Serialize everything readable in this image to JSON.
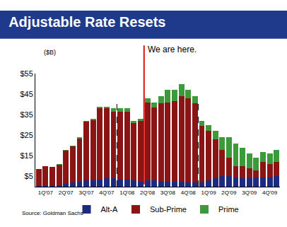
{
  "chart_data": {
    "type": "bar",
    "title": "Adjustable Rate Resets",
    "y_label": "($B)",
    "annotations": [
      "We are here."
    ],
    "source": "Source: Goldman Sachs",
    "stacked": true,
    "grid": false,
    "legend": "bottom",
    "categories": [
      null,
      "1Q'07",
      null,
      null,
      "2Q'07",
      null,
      null,
      "3Q'07",
      null,
      null,
      "4Q'07",
      null,
      null,
      "1Q'08",
      null,
      null,
      "2Q'08",
      null,
      null,
      "3Q'08",
      null,
      null,
      "4Q'08",
      null,
      null,
      "1Q'09",
      null,
      null,
      "2Q'09",
      null,
      null,
      "3Q'09",
      null,
      null,
      "4Q'09",
      null
    ],
    "series": [
      {
        "name": "Alt-A",
        "color": "#1c2a80",
        "values": [
          0.5,
          0.5,
          0.6,
          0.8,
          1.5,
          2,
          2.5,
          3,
          3,
          3.5,
          4,
          4,
          3.5,
          3.5,
          3,
          2.5,
          3,
          3,
          2.5,
          2.5,
          2.5,
          2.5,
          2,
          2,
          2,
          3,
          4,
          5,
          5,
          4.5,
          4,
          4,
          4.5,
          4.5,
          4.5,
          5
        ]
      },
      {
        "name": "Sub-Prime",
        "color": "#8b1414",
        "values": [
          8,
          9.5,
          8.9,
          10,
          16.2,
          17.7,
          21,
          28.5,
          29.2,
          34.5,
          34,
          32.5,
          33,
          33,
          28,
          29.5,
          38,
          35.5,
          38,
          38.5,
          39,
          41.5,
          41,
          38.5,
          27.5,
          24,
          19,
          13,
          9,
          5.5,
          6,
          5,
          3.5,
          7.5,
          6.5,
          7
        ]
      },
      {
        "name": "Prime",
        "color": "#3b9b3b",
        "values": [
          0,
          0,
          0,
          0.2,
          0.3,
          0.3,
          0.5,
          0.5,
          0.8,
          1,
          1,
          1.5,
          1.5,
          1.5,
          1,
          1,
          2,
          2.5,
          3.5,
          6,
          5.5,
          6,
          4,
          3.5,
          2.5,
          3,
          4,
          6,
          10,
          11,
          9,
          7,
          6,
          5,
          5,
          6
        ]
      }
    ],
    "ylim": [
      0,
      55
    ],
    "yticks": [
      {
        "value": 5,
        "label": "$5"
      },
      {
        "value": 15,
        "label": "$15"
      },
      {
        "value": 25,
        "label": "$25"
      },
      {
        "value": 35,
        "label": "$35"
      },
      {
        "value": 45,
        "label": "$45"
      },
      {
        "value": 55,
        "label": "$55"
      }
    ]
  }
}
